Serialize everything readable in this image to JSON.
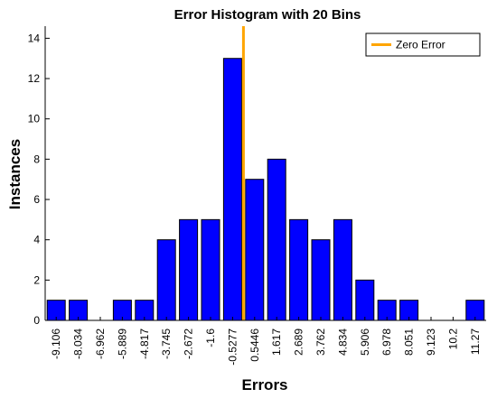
{
  "chart_data": {
    "type": "bar",
    "title": "Error Histogram with 20 Bins",
    "xlabel": "Errors",
    "ylabel": "Instances",
    "categories": [
      "-9.106",
      "-8.034",
      "-6.962",
      "-5.889",
      "-4.817",
      "-3.745",
      "-2.672",
      "-1.6",
      "-0.5277",
      "0.5446",
      "1.617",
      "2.689",
      "3.762",
      "4.834",
      "5.906",
      "6.978",
      "8.051",
      "9.123",
      "10.2",
      "11.27"
    ],
    "series": [
      {
        "values": [
          1,
          1,
          0,
          1,
          1,
          4,
          5,
          5,
          13,
          7,
          8,
          5,
          4,
          5,
          2,
          1,
          1,
          0,
          0,
          1
        ],
        "color": "#0000ff"
      }
    ],
    "ylim": [
      0,
      14.6
    ],
    "yticks": [
      "0",
      "2",
      "4",
      "6",
      "8",
      "10",
      "12",
      "14"
    ],
    "zero_line": {
      "label": "Zero Error",
      "x": 0,
      "color": "#ffa500"
    },
    "legend_position": "top-right",
    "grid": false
  }
}
